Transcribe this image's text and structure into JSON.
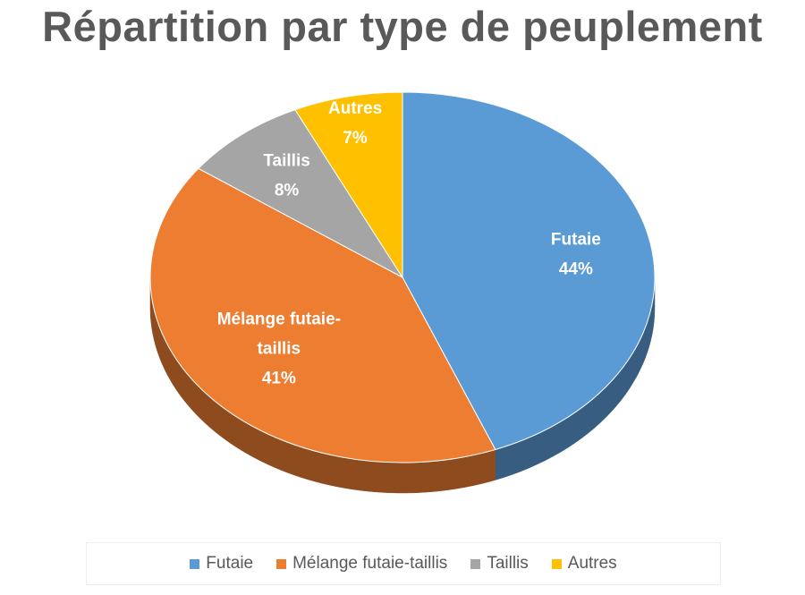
{
  "chart_data": {
    "type": "pie",
    "title": "Répartition par type de peuplement",
    "categories": [
      "Futaie",
      "Mélange futaie-taillis",
      "Taillis",
      "Autres"
    ],
    "values": [
      44,
      41,
      8,
      7
    ],
    "data_labels": [
      [
        "Futaie",
        "44%"
      ],
      [
        "Mélange futaie-",
        "taillis",
        "41%"
      ],
      [
        "Taillis",
        "8%"
      ],
      [
        "Autres",
        "7%"
      ]
    ],
    "colors": [
      "#5B9BD5",
      "#ED7D31",
      "#A5A5A5",
      "#FFC000"
    ],
    "legend_position": "bottom",
    "style": "3d"
  }
}
